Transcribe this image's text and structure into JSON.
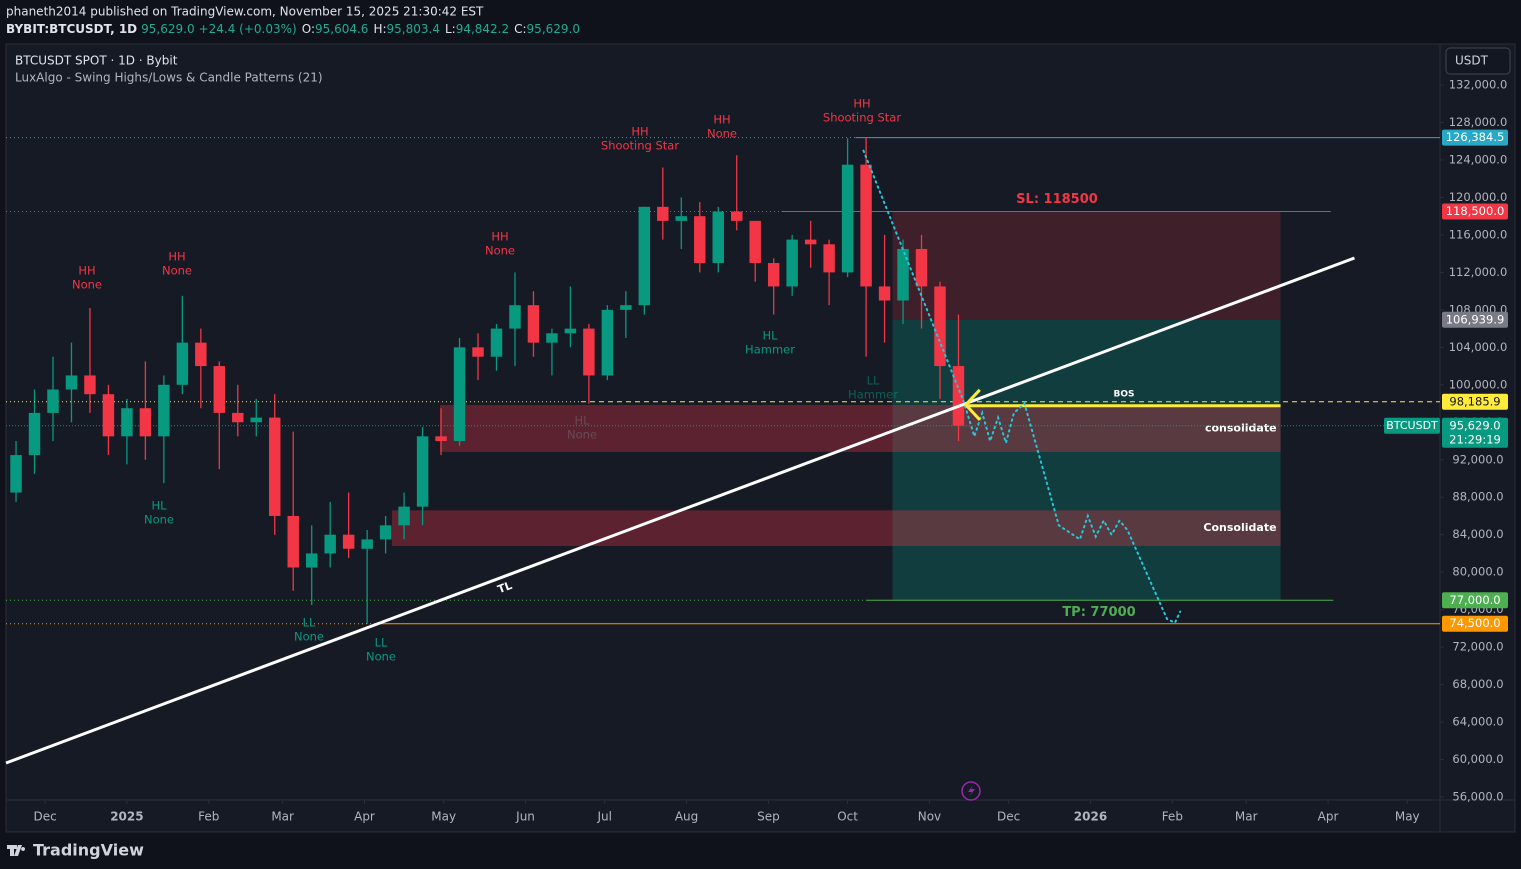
{
  "header": {
    "published": "phaneth2014 published on TradingView.com, November 15, 2025 21:30:42 EST",
    "quote": [
      "BYBIT:BTCUSDT, 1D",
      "95,629.0",
      "+24.4 (+0.03%)",
      "O:",
      "95,604.6",
      "H:",
      "95,803.4",
      "L:",
      "94,842.2",
      "C:",
      "95,629.0"
    ]
  },
  "footer": {
    "brand": "TradingView"
  },
  "chart_data": {
    "type": "candlestick",
    "title": "BTCUSDT SPOT · 1D · Bybit",
    "indicator": "LuxAlgo - Swing Highs/Lows & Candle Patterns (21)",
    "currency": "USDT",
    "up_color": "#089981",
    "down_color": "#f23645",
    "x": [
      -14,
      -7,
      0,
      7,
      14,
      21,
      28,
      35,
      42,
      49,
      56,
      63,
      70,
      77,
      84,
      91,
      98,
      105,
      112,
      119,
      126,
      133,
      140,
      147,
      154,
      161,
      168,
      175,
      182,
      189,
      196,
      203,
      210,
      217,
      224,
      231,
      238,
      245,
      252,
      259,
      266,
      273,
      280,
      287,
      294,
      301,
      308,
      315,
      322,
      329,
      336,
      343
    ],
    "open": [
      88500,
      92500,
      97000,
      99500,
      101000,
      99000,
      94500,
      97500,
      94500,
      100000,
      104500,
      102000,
      97000,
      96000,
      96500,
      86000,
      80500,
      82000,
      84000,
      82500,
      83500,
      85000,
      87000,
      94500,
      94000,
      104000,
      103000,
      106000,
      108500,
      104500,
      105500,
      106000,
      101000,
      108000,
      108500,
      119000,
      117500,
      118000,
      113000,
      118500,
      117500,
      113000,
      110500,
      115500,
      115000,
      112000,
      123500,
      110500,
      109000,
      114500,
      110500,
      102000
    ],
    "high": [
      94000,
      99500,
      103000,
      104500,
      108200,
      100000,
      98500,
      102500,
      101000,
      109500,
      106000,
      102500,
      100000,
      98500,
      99000,
      95000,
      85000,
      87500,
      88500,
      84500,
      86000,
      88500,
      95500,
      97500,
      105000,
      105500,
      106500,
      112000,
      110000,
      106000,
      110500,
      106500,
      108500,
      110000,
      119000,
      123200,
      120000,
      119500,
      119000,
      124500,
      117500,
      113500,
      116000,
      117500,
      115500,
      126300,
      126400,
      116000,
      115500,
      116000,
      111000,
      107500
    ],
    "low": [
      87500,
      90500,
      94000,
      96000,
      97000,
      92500,
      91500,
      92000,
      89500,
      99000,
      97500,
      91000,
      94500,
      94500,
      84000,
      78000,
      76500,
      80500,
      81500,
      74500,
      82000,
      83500,
      85000,
      92500,
      93500,
      100500,
      101500,
      102000,
      103000,
      101000,
      104000,
      98000,
      100500,
      105000,
      107500,
      115500,
      114500,
      112000,
      112000,
      116500,
      111000,
      107500,
      109500,
      112500,
      108500,
      111500,
      103000,
      104500,
      106500,
      106000,
      98500,
      94000
    ],
    "close": [
      92500,
      97000,
      99500,
      101000,
      99000,
      94500,
      97500,
      94500,
      100000,
      104500,
      102000,
      97000,
      96000,
      96500,
      86000,
      80500,
      82000,
      84000,
      82500,
      83500,
      85000,
      87000,
      94500,
      94000,
      104000,
      103000,
      106000,
      108500,
      104500,
      105500,
      106000,
      101000,
      108000,
      108500,
      119000,
      117500,
      118000,
      113000,
      118500,
      117500,
      113000,
      110500,
      115500,
      115000,
      112000,
      123500,
      110500,
      109000,
      114500,
      110500,
      102000,
      95629
    ],
    "xlim": [
      -14.8,
      528.4
    ],
    "xticks": [
      {
        "value": 0,
        "label": "Dec"
      },
      {
        "value": 31,
        "label": "2025"
      },
      {
        "value": 62,
        "label": "Feb"
      },
      {
        "value": 90,
        "label": "Mar"
      },
      {
        "value": 121,
        "label": "Apr"
      },
      {
        "value": 151,
        "label": "May"
      },
      {
        "value": 182,
        "label": "Jun"
      },
      {
        "value": 212,
        "label": "Jul"
      },
      {
        "value": 243,
        "label": "Aug"
      },
      {
        "value": 274,
        "label": "Sep"
      },
      {
        "value": 304,
        "label": "Oct"
      },
      {
        "value": 335,
        "label": "Nov"
      },
      {
        "value": 365,
        "label": "Dec"
      },
      {
        "value": 396,
        "label": "2026"
      },
      {
        "value": 427,
        "label": "Feb"
      },
      {
        "value": 455,
        "label": "Mar"
      },
      {
        "value": 486,
        "label": "Apr"
      },
      {
        "value": 516,
        "label": "May"
      }
    ],
    "ylim": [
      55680,
      136380
    ],
    "yticks": [
      {
        "value": 56000,
        "label": "56,000.0"
      },
      {
        "value": 60000,
        "label": "60,000.0"
      },
      {
        "value": 64000,
        "label": "64,000.0"
      },
      {
        "value": 68000,
        "label": "68,000.0"
      },
      {
        "value": 72000,
        "label": "72,000.0"
      },
      {
        "value": 76000,
        "label": "76,000.0"
      },
      {
        "value": 80000,
        "label": "80,000.0"
      },
      {
        "value": 84000,
        "label": "84,000.0"
      },
      {
        "value": 88000,
        "label": "88,000.0"
      },
      {
        "value": 92000,
        "label": "92,000.0"
      },
      {
        "value": 96000,
        "label": "96,000.0"
      },
      {
        "value": 100000,
        "label": "100,000.0"
      },
      {
        "value": 104000,
        "label": "104,000.0"
      },
      {
        "value": 108000,
        "label": "108,000.0"
      },
      {
        "value": 112000,
        "label": "112,000.0"
      },
      {
        "value": 116000,
        "label": "116,000.0"
      },
      {
        "value": 120000,
        "label": "120,000.0"
      },
      {
        "value": 124000,
        "label": "124,000.0"
      },
      {
        "value": 128000,
        "label": "128,000.0"
      },
      {
        "value": 132000,
        "label": "132,000.0"
      }
    ],
    "grid": false,
    "zones": [
      {
        "x": [
          321,
          468
        ],
        "y": [
          106939.9,
          118500
        ],
        "color": "rgba(242,54,69,0.18)"
      },
      {
        "x": [
          321,
          468
        ],
        "y": [
          77000,
          106939.9
        ],
        "color": "rgba(8,153,129,0.28)"
      },
      {
        "x": [
          149.6,
          468
        ],
        "y": [
          92830,
          97850
        ],
        "color": "rgba(242,54,69,0.32)",
        "label": "consolidate"
      },
      {
        "x": [
          131.4,
          468
        ],
        "y": [
          82800,
          86600
        ],
        "color": "rgba(242,54,69,0.32)",
        "label": "Consolidate"
      }
    ],
    "levels": [
      {
        "value": 126384.5,
        "label": "126,384.5",
        "color": "#26a8c6",
        "from": 307,
        "to": 528.4
      },
      {
        "value": 118500,
        "label": "118,500.0",
        "color": "#f23645",
        "from": 279,
        "to": 487,
        "text": "SL: 118500"
      },
      {
        "value": 106939.9,
        "label": "106,939.9",
        "color": "#787b86"
      },
      {
        "value": 98185.9,
        "label": "98,185.9",
        "color": "#ffeb3b",
        "from": 203,
        "to": 528.4,
        "text": "BOS"
      },
      {
        "value": 95629.0,
        "label": "95,629.0",
        "color": "#089981"
      },
      {
        "value": 77000.0,
        "label": "77,000.0",
        "color": "#4caf50",
        "from": 311,
        "to": 488,
        "text": "TP: 77000"
      },
      {
        "value": 74500.0,
        "label": "74,500.0",
        "color": "#ff9800",
        "from": 127,
        "to": 528.4
      }
    ],
    "price_tag": {
      "symbol": "BTCUSDT",
      "countdown": "21:29:19"
    },
    "trendline": {
      "x": [
        -14.8,
        496
      ],
      "y": [
        59630,
        113535
      ],
      "label": "TL"
    },
    "projection": {
      "x": [
        310,
        348,
        352,
        355,
        358,
        361,
        364,
        367,
        371,
        384,
        392,
        395,
        398,
        401,
        404,
        407,
        410,
        425,
        428,
        430
      ],
      "y": [
        125000,
        98200,
        94500,
        97000,
        94000,
        96500,
        93800,
        97000,
        98000,
        85000,
        83500,
        86000,
        83800,
        85500,
        84000,
        85500,
        84500,
        75000,
        74600,
        75800
      ]
    },
    "swing_labels": [
      [
        "HH",
        "None"
      ],
      [
        "HH",
        "None"
      ],
      [
        "HL",
        "None"
      ],
      [
        "LL",
        "None"
      ],
      [
        "LL",
        "None"
      ],
      [
        "HH",
        "None"
      ],
      [
        "HL",
        "None"
      ],
      [
        "HH",
        "Shooting Star"
      ],
      [
        "HH",
        "None"
      ],
      [
        "HL",
        "Hammer"
      ],
      [
        "HH",
        "Shooting Star"
      ],
      [
        "LL",
        "Hammer"
      ]
    ]
  }
}
